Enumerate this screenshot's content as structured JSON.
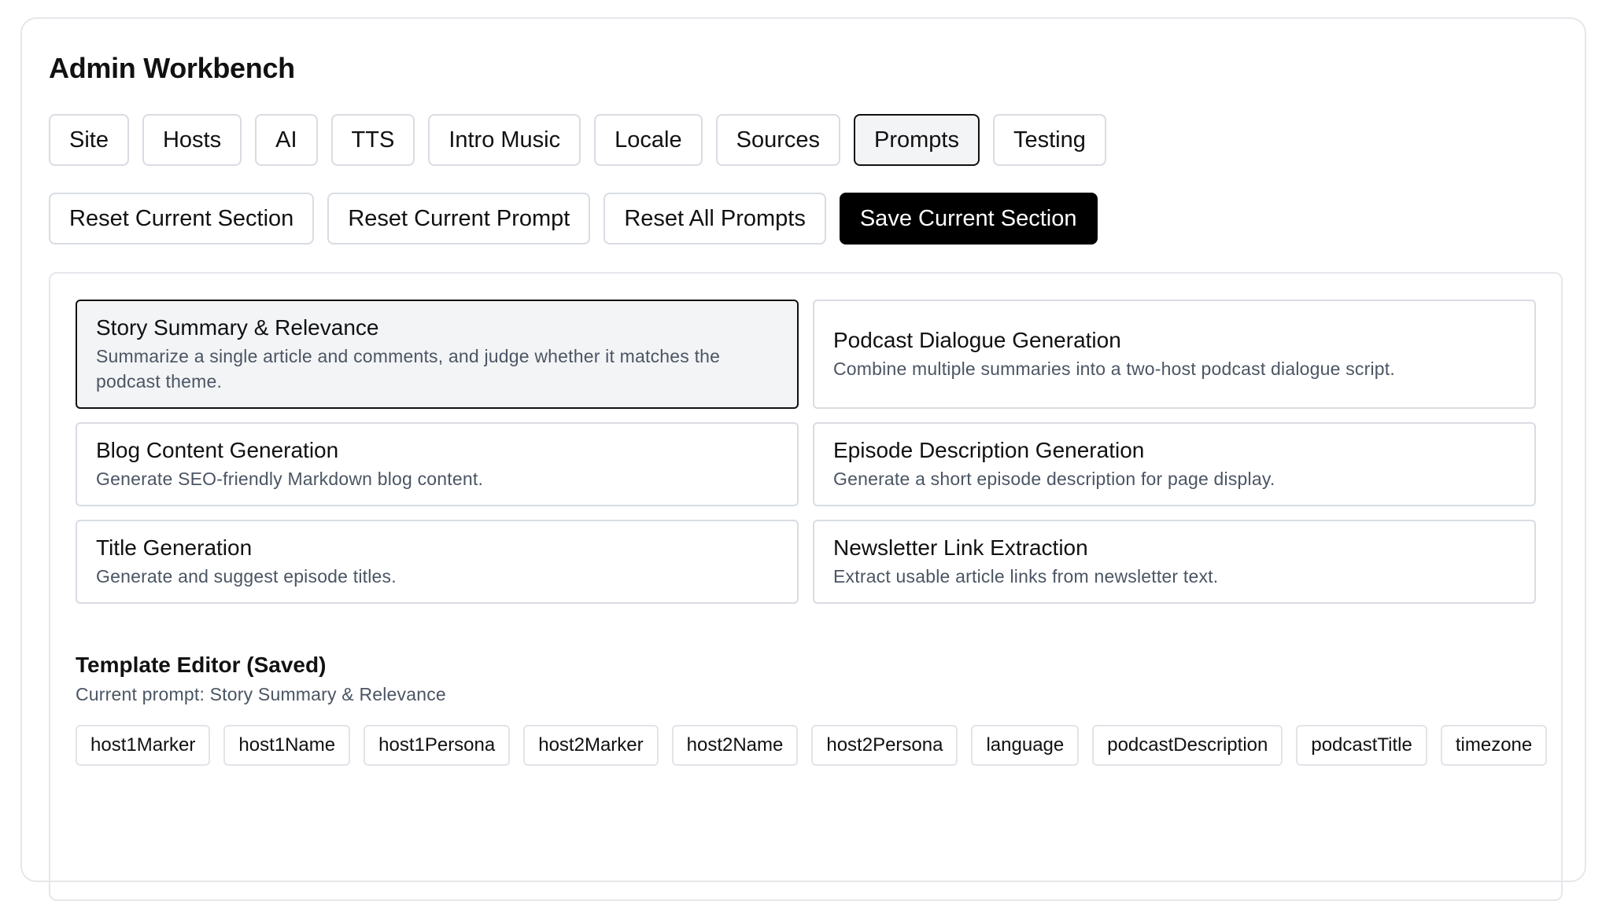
{
  "title": "Admin Workbench",
  "tabs": [
    {
      "label": "Site"
    },
    {
      "label": "Hosts"
    },
    {
      "label": "AI"
    },
    {
      "label": "TTS"
    },
    {
      "label": "Intro Music"
    },
    {
      "label": "Locale"
    },
    {
      "label": "Sources"
    },
    {
      "label": "Prompts",
      "active": true
    },
    {
      "label": "Testing"
    }
  ],
  "actions": {
    "reset_section": "Reset Current Section",
    "reset_prompt": "Reset Current Prompt",
    "reset_all": "Reset All Prompts",
    "save_section": "Save Current Section"
  },
  "prompts": [
    {
      "name": "Story Summary & Relevance",
      "description": "Summarize a single article and comments, and judge whether it matches the podcast theme.",
      "selected": true
    },
    {
      "name": "Podcast Dialogue Generation",
      "description": "Combine multiple summaries into a two-host podcast dialogue script."
    },
    {
      "name": "Blog Content Generation",
      "description": "Generate SEO-friendly Markdown blog content."
    },
    {
      "name": "Episode Description Generation",
      "description": "Generate a short episode description for page display."
    },
    {
      "name": "Title Generation",
      "description": "Generate and suggest episode titles."
    },
    {
      "name": "Newsletter Link Extraction",
      "description": "Extract usable article links from newsletter text."
    }
  ],
  "editor": {
    "title": "Template Editor (Saved)",
    "current_prompt": "Current prompt: Story Summary & Relevance",
    "variables": [
      "host1Marker",
      "host1Name",
      "host1Persona",
      "host2Marker",
      "host2Name",
      "host2Persona",
      "language",
      "podcastDescription",
      "podcastTitle",
      "timezone"
    ]
  }
}
